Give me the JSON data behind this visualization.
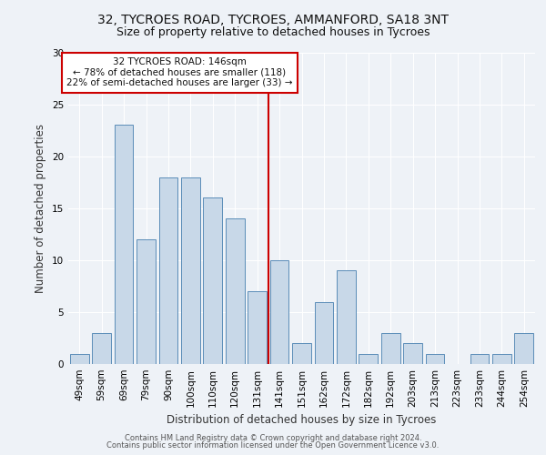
{
  "title_line1": "32, TYCROES ROAD, TYCROES, AMMANFORD, SA18 3NT",
  "title_line2": "Size of property relative to detached houses in Tycroes",
  "xlabel": "Distribution of detached houses by size in Tycroes",
  "ylabel": "Number of detached properties",
  "categories": [
    "49sqm",
    "59sqm",
    "69sqm",
    "79sqm",
    "90sqm",
    "100sqm",
    "110sqm",
    "120sqm",
    "131sqm",
    "141sqm",
    "151sqm",
    "162sqm",
    "172sqm",
    "182sqm",
    "192sqm",
    "203sqm",
    "213sqm",
    "223sqm",
    "233sqm",
    "244sqm",
    "254sqm"
  ],
  "values": [
    1,
    3,
    23,
    12,
    18,
    18,
    16,
    14,
    7,
    10,
    2,
    6,
    9,
    1,
    3,
    2,
    1,
    0,
    1,
    1,
    3
  ],
  "bar_color": "#c8d8e8",
  "bar_edge_color": "#5b8db8",
  "red_line_index": 9,
  "annotation_text": "32 TYCROES ROAD: 146sqm\n← 78% of detached houses are smaller (118)\n22% of semi-detached houses are larger (33) →",
  "annotation_box_color": "#ffffff",
  "annotation_box_edge": "#cc0000",
  "ylim": [
    0,
    30
  ],
  "yticks": [
    0,
    5,
    10,
    15,
    20,
    25,
    30
  ],
  "footer_line1": "Contains HM Land Registry data © Crown copyright and database right 2024.",
  "footer_line2": "Contains public sector information licensed under the Open Government Licence v3.0.",
  "bg_color": "#eef2f7",
  "plot_bg_color": "#eef2f7",
  "title_fontsize": 10,
  "subtitle_fontsize": 9,
  "tick_fontsize": 7.5,
  "xlabel_fontsize": 8.5,
  "ylabel_fontsize": 8.5,
  "annotation_fontsize": 7.5,
  "footer_fontsize": 6.0
}
